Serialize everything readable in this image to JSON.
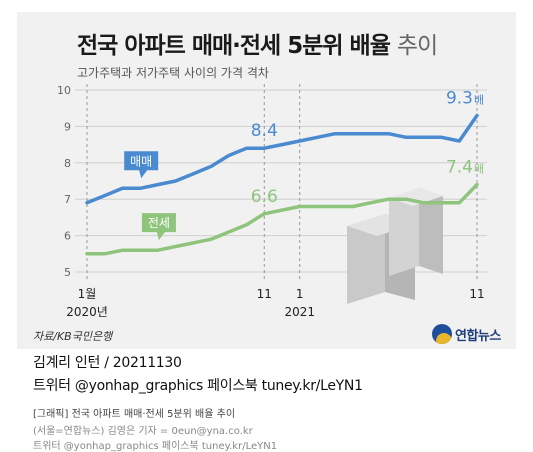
{
  "title_bold": "전국 아파트 매매·전세 5분위 배율",
  "title_light": "추이",
  "subtitle": "고가주택과 저가주택 사이의 가격 격차",
  "source": "자료/KB국민은행",
  "logo_text": "연합뉴스",
  "footer": {
    "byline": "김계리 인턴 / 20211130",
    "social": "트위터 @yonhap_graphics  페이스북 tuney.kr/LeYN1"
  },
  "credits": {
    "line1": "[그래픽] 전국 아파트 매매·전세 5분위 배율 추이",
    "line2": "(서울=연합뉴스) 김영은 기자 = 0eun@yna.co.kr",
    "line3": "트위터 @yonhap_graphics 페이스북 tuney.kr/LeYN1"
  },
  "chart_data": {
    "type": "line",
    "x": [
      "2020-01",
      "2020-02",
      "2020-03",
      "2020-04",
      "2020-05",
      "2020-06",
      "2020-07",
      "2020-08",
      "2020-09",
      "2020-10",
      "2020-11",
      "2020-12",
      "2021-01",
      "2021-02",
      "2021-03",
      "2021-04",
      "2021-05",
      "2021-06",
      "2021-07",
      "2021-08",
      "2021-09",
      "2021-10",
      "2021-11"
    ],
    "ylim": [
      5,
      10
    ],
    "yticks": [
      5,
      6,
      7,
      8,
      9,
      10
    ],
    "xtick_labels": [
      {
        "x": "2020-01",
        "label": "1월"
      },
      {
        "x": "2020-11",
        "label": "11"
      },
      {
        "x": "2021-01",
        "label": "1"
      },
      {
        "x": "2021-11",
        "label": "11"
      }
    ],
    "year_labels": [
      {
        "x": "2020-01",
        "label": "2020년"
      },
      {
        "x": "2021-01",
        "label": "2021"
      }
    ],
    "grid": true,
    "series": [
      {
        "name": "매매",
        "color": "#4a8ad0",
        "values": [
          6.9,
          7.1,
          7.3,
          7.3,
          7.4,
          7.5,
          7.7,
          7.9,
          8.2,
          8.4,
          8.4,
          8.5,
          8.6,
          8.7,
          8.8,
          8.8,
          8.8,
          8.8,
          8.7,
          8.7,
          8.7,
          8.6,
          9.3
        ],
        "annotations": [
          {
            "x": "2020-11",
            "value": 8.4,
            "label": "8.4"
          },
          {
            "x": "2021-11",
            "value": 9.3,
            "label": "9.3",
            "suffix": "배"
          }
        ]
      },
      {
        "name": "전세",
        "color": "#8fc47c",
        "values": [
          5.5,
          5.5,
          5.6,
          5.6,
          5.6,
          5.7,
          5.8,
          5.9,
          6.1,
          6.3,
          6.6,
          6.7,
          6.8,
          6.8,
          6.8,
          6.8,
          6.9,
          7.0,
          7.0,
          6.9,
          6.9,
          6.9,
          7.4
        ],
        "annotations": [
          {
            "x": "2020-11",
            "value": 6.6,
            "label": "6.6"
          },
          {
            "x": "2021-11",
            "value": 7.4,
            "label": "7.4",
            "suffix": "배"
          }
        ]
      }
    ]
  }
}
